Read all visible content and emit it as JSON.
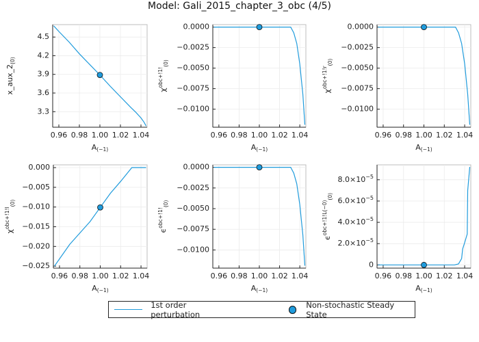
{
  "figure": {
    "title": "Model: Gali_2015_chapter_3_obc  (4/5)",
    "legend": {
      "items": [
        {
          "label": "1st order perturbation",
          "type": "line",
          "color": "#1f9bdc"
        },
        {
          "label": "Non-stochastic Steady State",
          "type": "marker",
          "color": "#1f9bdc"
        }
      ]
    }
  },
  "chart_data": [
    {
      "type": "line",
      "title": "",
      "xlabel": "A(−1)",
      "ylabel": "x_aux_2(0)",
      "xlim": [
        0.954,
        1.046
      ],
      "ylim": [
        3.05,
        4.7
      ],
      "xticks": [
        "0.96",
        "0.98",
        "1.00",
        "1.02",
        "1.04"
      ],
      "yticks": [
        "3.3",
        "3.6",
        "3.9",
        "4.2",
        "4.5"
      ],
      "ytick_values": [
        3.3,
        3.6,
        3.9,
        4.2,
        4.5
      ],
      "series": [
        {
          "name": "1st order perturbation",
          "x": [
            0.955,
            0.96,
            0.97,
            0.98,
            0.99,
            1.0,
            1.01,
            1.02,
            1.03,
            1.035,
            1.04,
            1.043,
            1.045
          ],
          "y": [
            4.68,
            4.59,
            4.42,
            4.23,
            4.06,
            3.89,
            3.71,
            3.54,
            3.37,
            3.29,
            3.2,
            3.13,
            3.07
          ]
        }
      ],
      "steady_state": {
        "x": 1.0,
        "y": 3.89
      },
      "grid": true
    },
    {
      "type": "line",
      "xlabel": "A(−1)",
      "ylabel": "χobc+!1!(0)",
      "xlim": [
        0.954,
        1.046
      ],
      "ylim": [
        -0.0122,
        0.0003
      ],
      "xticks": [
        "0.96",
        "0.98",
        "1.00",
        "1.02",
        "1.04"
      ],
      "yticks": [
        "0.0000",
        "−0.0025",
        "−0.0050",
        "−0.0075",
        "−0.0100"
      ],
      "ytick_values": [
        0.0,
        -0.0025,
        -0.005,
        -0.0075,
        -0.01
      ],
      "series": [
        {
          "name": "1st order perturbation",
          "x": [
            0.955,
            0.97,
            0.99,
            1.01,
            1.031,
            1.034,
            1.037,
            1.04,
            1.043,
            1.045
          ],
          "y": [
            0,
            0,
            0,
            0,
            0,
            -0.0007,
            -0.002,
            -0.0045,
            -0.0082,
            -0.0119
          ]
        }
      ],
      "steady_state": {
        "x": 1.0,
        "y": 0.0
      },
      "grid": true
    },
    {
      "type": "line",
      "xlabel": "A(−1)",
      "ylabel": "χobc+!1!r(0)",
      "xlim": [
        0.954,
        1.046
      ],
      "ylim": [
        -0.0122,
        0.0003
      ],
      "xticks": [
        "0.96",
        "0.98",
        "1.00",
        "1.02",
        "1.04"
      ],
      "yticks": [
        "0.0000",
        "−0.0025",
        "−0.0050",
        "−0.0075",
        "−0.0100"
      ],
      "ytick_values": [
        0.0,
        -0.0025,
        -0.005,
        -0.0075,
        -0.01
      ],
      "series": [
        {
          "name": "1st order perturbation",
          "x": [
            0.955,
            0.97,
            0.99,
            1.01,
            1.031,
            1.034,
            1.037,
            1.04,
            1.043,
            1.045
          ],
          "y": [
            0,
            0,
            0,
            0,
            0,
            -0.0007,
            -0.002,
            -0.0045,
            -0.0082,
            -0.0119
          ]
        }
      ],
      "steady_state": {
        "x": 1.0,
        "y": 0.0
      },
      "grid": true
    },
    {
      "type": "line",
      "xlabel": "A(−1)",
      "ylabel": "χobc+!1!l(0)",
      "xlim": [
        0.954,
        1.046
      ],
      "ylim": [
        -0.0255,
        0.0007
      ],
      "xticks": [
        "0.96",
        "0.98",
        "1.00",
        "1.02",
        "1.04"
      ],
      "yticks": [
        "0.000",
        "−0.005",
        "−0.010",
        "−0.015",
        "−0.020",
        "−0.025"
      ],
      "ytick_values": [
        0.0,
        -0.005,
        -0.01,
        -0.015,
        -0.02,
        -0.025
      ],
      "series": [
        {
          "name": "1st order perturbation",
          "x": [
            0.955,
            0.97,
            0.99,
            1.0,
            1.01,
            1.02,
            1.031,
            1.04,
            1.045
          ],
          "y": [
            -0.025,
            -0.0195,
            -0.0137,
            -0.0101,
            -0.0065,
            -0.0035,
            0.0,
            0.0,
            0.0
          ]
        }
      ],
      "steady_state": {
        "x": 1.0,
        "y": -0.0101
      },
      "grid": true
    },
    {
      "type": "line",
      "xlabel": "A(−1)",
      "ylabel": "ϵobc+!1!(0)",
      "xlim": [
        0.954,
        1.046
      ],
      "ylim": [
        -0.0122,
        0.0003
      ],
      "xticks": [
        "0.96",
        "0.98",
        "1.00",
        "1.02",
        "1.04"
      ],
      "yticks": [
        "0.0000",
        "−0.0025",
        "−0.0050",
        "−0.0075",
        "−0.0100"
      ],
      "ytick_values": [
        0.0,
        -0.0025,
        -0.005,
        -0.0075,
        -0.01
      ],
      "series": [
        {
          "name": "1st order perturbation",
          "x": [
            0.955,
            0.97,
            0.99,
            1.01,
            1.031,
            1.034,
            1.037,
            1.04,
            1.043,
            1.045
          ],
          "y": [
            0,
            0,
            0,
            0,
            0,
            -0.0007,
            -0.002,
            -0.0045,
            -0.0082,
            -0.0119
          ]
        }
      ],
      "steady_state": {
        "x": 1.0,
        "y": 0.0
      },
      "grid": true
    },
    {
      "type": "line",
      "xlabel": "A(−1)",
      "ylabel": "ϵobc+!1!L(−0)(0)",
      "xlim": [
        0.954,
        1.046
      ],
      "ylim": [
        -3e-06,
        9.4e-05
      ],
      "xticks": [
        "0.96",
        "0.98",
        "1.00",
        "1.02",
        "1.04"
      ],
      "yticks": [
        "0",
        "2.0×10−5",
        "4.0×10−5",
        "6.0×10−5",
        "8.0×10−5"
      ],
      "ytick_values": [
        0,
        2e-05,
        4e-05,
        6e-05,
        8e-05
      ],
      "series": [
        {
          "name": "1st order perturbation",
          "x": [
            0.955,
            0.97,
            0.99,
            1.01,
            1.03,
            1.034,
            1.037,
            1.038,
            1.04,
            1.0425,
            1.043,
            1.045
          ],
          "y": [
            0,
            0,
            0,
            0,
            0,
            1e-06,
            6e-06,
            1.5e-05,
            2.1e-05,
            2.9e-05,
            7e-05,
            9.2e-05
          ]
        }
      ],
      "steady_state": {
        "x": 1.0,
        "y": 0.0
      },
      "grid": true
    }
  ]
}
